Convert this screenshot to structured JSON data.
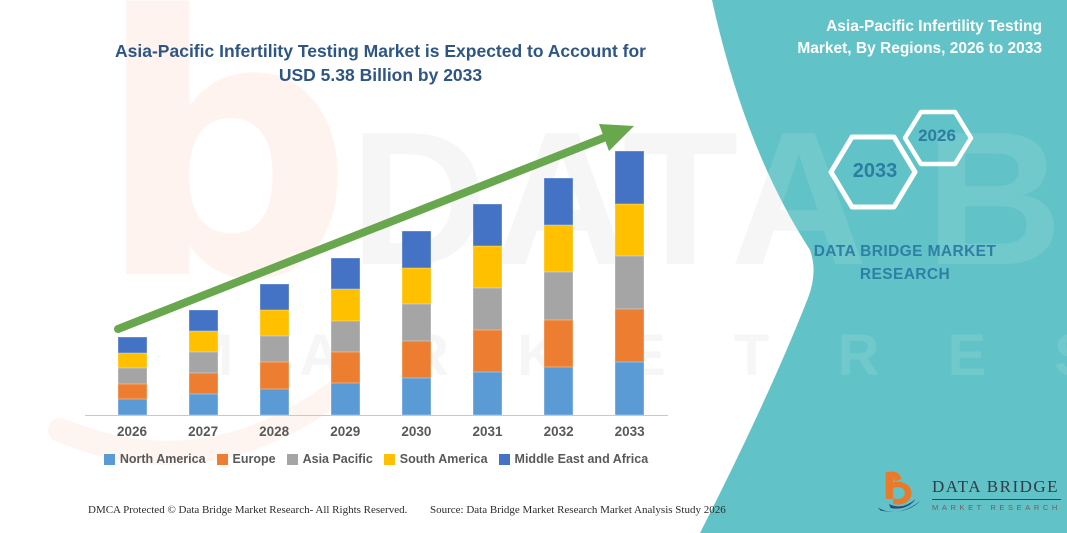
{
  "header": {
    "title_line1": "Asia-Pacific Infertility Testing Market is Expected to Account for",
    "title_line2": "USD 5.38 Billion by 2033"
  },
  "side_panel": {
    "panel_color": "#61c3c7",
    "title_line1": "Asia-Pacific Infertility Testing",
    "title_line2": "Market, By Regions, 2026 to 2033",
    "hexagon_large_label": "2033",
    "hexagon_small_label": "2026",
    "brand_text": "DATA BRIDGE MARKET RESEARCH"
  },
  "watermark": {
    "brand": "DATA BRIDGE",
    "tagline": "M A R K E T   R E S E A R C H",
    "letter": "b"
  },
  "chart_data": {
    "type": "bar",
    "stacked": true,
    "title": "Asia-Pacific Infertility Testing Market is Expected to Account for USD 5.38 Billion by 2033",
    "xlabel": "",
    "ylabel": "",
    "unit": "USD Billion",
    "grid": false,
    "legend_position": "bottom",
    "categories": [
      "2026",
      "2027",
      "2028",
      "2029",
      "2030",
      "2031",
      "2032",
      "2033"
    ],
    "series": [
      {
        "name": "North America",
        "color": "#5B9BD5",
        "values": [
          0.32,
          0.43,
          0.54,
          0.65,
          0.76,
          0.87,
          0.97,
          1.08
        ]
      },
      {
        "name": "Europe",
        "color": "#ED7D31",
        "values": [
          0.32,
          0.43,
          0.54,
          0.64,
          0.75,
          0.86,
          0.97,
          1.08
        ]
      },
      {
        "name": "Asia Pacific",
        "color": "#A5A5A5",
        "values": [
          0.32,
          0.43,
          0.54,
          0.64,
          0.75,
          0.86,
          0.97,
          1.07
        ]
      },
      {
        "name": "South America",
        "color": "#FFC000",
        "values": [
          0.32,
          0.43,
          0.53,
          0.64,
          0.75,
          0.86,
          0.96,
          1.07
        ]
      },
      {
        "name": "Middle East and Africa",
        "color": "#4472C4",
        "values": [
          0.32,
          0.42,
          0.53,
          0.64,
          0.75,
          0.85,
          0.96,
          1.08
        ]
      }
    ],
    "estimated_totals": [
      1.6,
      2.14,
      2.68,
      3.21,
      3.76,
      4.3,
      4.83,
      5.38
    ],
    "highlight_value_2033": "5.38",
    "trend_arrow_color": "#69a74e"
  },
  "logo": {
    "name": "DATA BRIDGE",
    "tagline": "MARKET RESEARCH"
  },
  "footer": {
    "dmca": "DMCA Protected © Data Bridge Market Research-  All Rights Reserved.",
    "source": "Source: Data Bridge Market Research  Market Analysis Study 2026"
  }
}
